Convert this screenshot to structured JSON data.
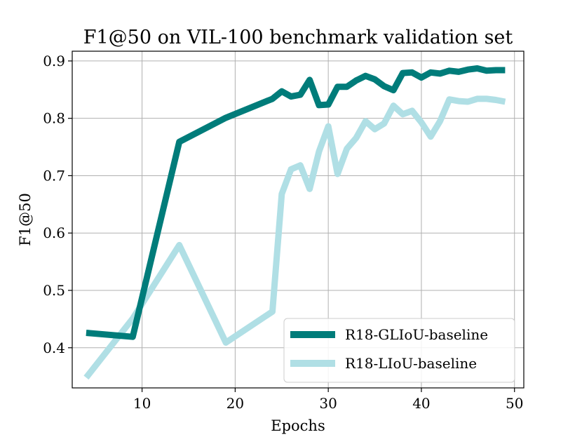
{
  "chart_data": {
    "type": "line",
    "title": "F1@50 on VIL-100 benchmark validation set",
    "xlabel": "Epochs",
    "ylabel": "F1@50",
    "xlim": [
      2.5,
      51.0
    ],
    "ylim": [
      0.33,
      0.917
    ],
    "xticks": [
      10,
      20,
      30,
      40,
      50
    ],
    "yticks": [
      0.4,
      0.5,
      0.6,
      0.7,
      0.8,
      0.9
    ],
    "xtick_labels": [
      "10",
      "20",
      "30",
      "40",
      "50"
    ],
    "ytick_labels": [
      "0.4",
      "0.5",
      "0.6",
      "0.7",
      "0.8",
      "0.9"
    ],
    "grid": true,
    "legend_position": "lower-right",
    "series": [
      {
        "name": "R18-GLIoU-baseline",
        "color": "#007c7a",
        "x": [
          4,
          9,
          14,
          19,
          24,
          25,
          26,
          27,
          28,
          29,
          30,
          31,
          32,
          33,
          34,
          35,
          36,
          37,
          38,
          39,
          40,
          41,
          42,
          43,
          44,
          45,
          46,
          47,
          48,
          49
        ],
        "y": [
          0.426,
          0.419,
          0.759,
          0.801,
          0.834,
          0.847,
          0.838,
          0.841,
          0.867,
          0.823,
          0.824,
          0.855,
          0.855,
          0.866,
          0.874,
          0.868,
          0.856,
          0.849,
          0.879,
          0.88,
          0.871,
          0.88,
          0.878,
          0.883,
          0.881,
          0.885,
          0.887,
          0.883,
          0.884,
          0.884
        ]
      },
      {
        "name": "R18-LIoU-baseline",
        "color": "#b0dfe5",
        "x": [
          4,
          9,
          14,
          19,
          24,
          25,
          26,
          27,
          28,
          29,
          30,
          31,
          32,
          33,
          34,
          35,
          36,
          37,
          38,
          39,
          40,
          41,
          42,
          43,
          44,
          45,
          46,
          47,
          48,
          49
        ],
        "y": [
          0.348,
          0.451,
          0.579,
          0.409,
          0.463,
          0.668,
          0.711,
          0.718,
          0.677,
          0.742,
          0.786,
          0.703,
          0.747,
          0.766,
          0.795,
          0.781,
          0.791,
          0.822,
          0.807,
          0.813,
          0.793,
          0.768,
          0.795,
          0.833,
          0.83,
          0.829,
          0.834,
          0.834,
          0.832,
          0.829
        ]
      }
    ]
  }
}
